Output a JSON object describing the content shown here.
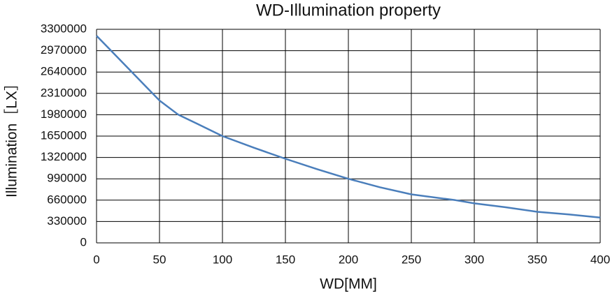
{
  "chart_data": {
    "type": "line",
    "title": "WD-Illumination property",
    "x_label": "WD[MM]",
    "y_label": "Illumination［LX］",
    "x": [
      0,
      10,
      25,
      40,
      50,
      65,
      80,
      100,
      125,
      150,
      175,
      200,
      225,
      250,
      285,
      300,
      325,
      350,
      375,
      400
    ],
    "series": [
      {
        "name": "Illumination",
        "color": "#4a7ebb",
        "values": [
          3200000,
          3000000,
          2700000,
          2400000,
          2200000,
          1980000,
          1840000,
          1650000,
          1470000,
          1300000,
          1140000,
          990000,
          860000,
          750000,
          660000,
          610000,
          550000,
          480000,
          440000,
          390000
        ]
      }
    ],
    "xlim": [
      0,
      400
    ],
    "xticks": [
      0,
      50,
      100,
      150,
      200,
      250,
      300,
      350,
      400
    ],
    "ylim": [
      0,
      3300000
    ],
    "yticks": [
      0,
      330000,
      660000,
      990000,
      1320000,
      1650000,
      1980000,
      2310000,
      2640000,
      2970000,
      3300000
    ],
    "grid": true
  }
}
